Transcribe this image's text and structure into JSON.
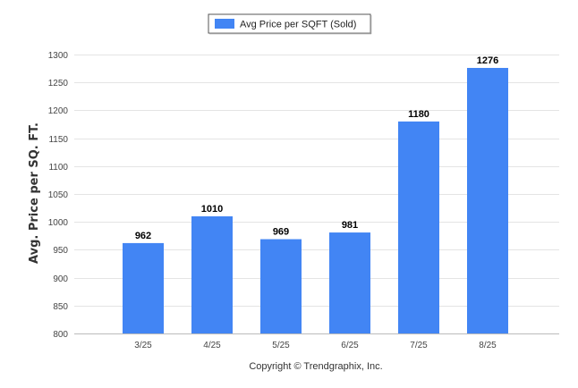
{
  "chart_data": {
    "type": "bar",
    "categories": [
      "3/25",
      "4/25",
      "5/25",
      "6/25",
      "7/25",
      "8/25"
    ],
    "series": [
      {
        "name": "Avg Price per SQFT (Sold)",
        "values": [
          962,
          1010,
          969,
          981,
          1180,
          1276
        ]
      }
    ],
    "ylabel": "Avg. Price per SQ. FT.",
    "xlabel": "",
    "ylim": [
      800,
      1300
    ],
    "yticks": [
      800,
      850,
      900,
      950,
      1000,
      1050,
      1100,
      1150,
      1200,
      1250,
      1300
    ],
    "grid": true,
    "legend_position": "top-center",
    "bar_color": "#4285f4"
  },
  "footer": {
    "copyright": "Copyright © Trendgraphix, Inc."
  }
}
